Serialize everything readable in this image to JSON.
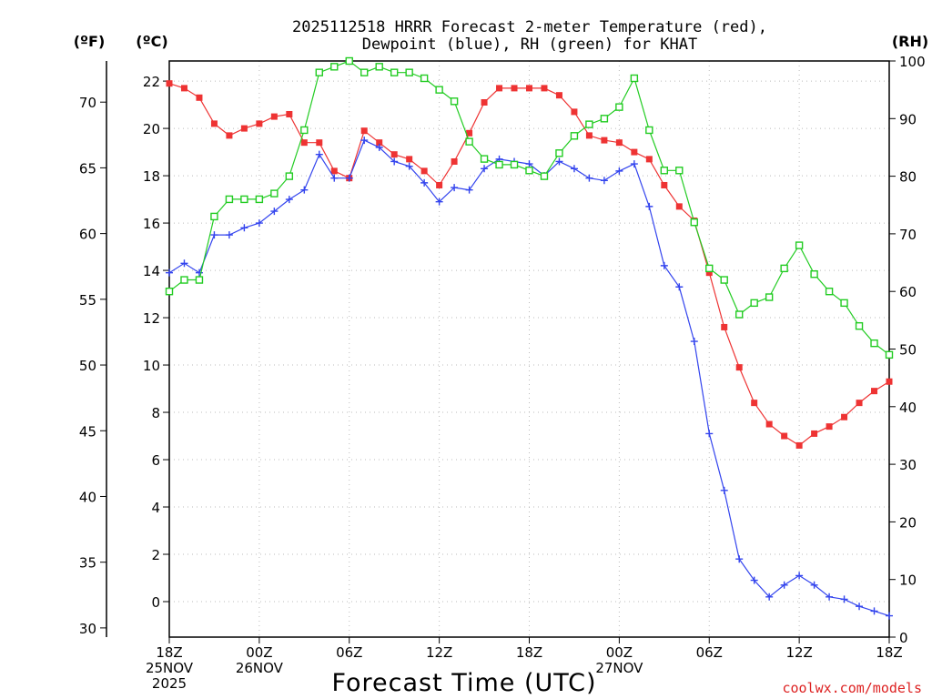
{
  "chart_data": {
    "type": "line",
    "title_line1": "2025112518 HRRR Forecast 2-meter Temperature (red),",
    "title_line2": "Dewpoint (blue), RH (green) for KHAT",
    "unit_f": "(ºF)",
    "unit_c": "(ºC)",
    "unit_rh": "(RH)",
    "xlabel": "Forecast Time (UTC)",
    "credit": "coolwx.com/models",
    "colors": {
      "temperature": "#ee3333",
      "dewpoint": "#3344ee",
      "rh": "#22cc22",
      "grid": "#bbbbbb"
    },
    "x_range_hours": [
      0,
      48
    ],
    "x_ticks": [
      {
        "hour": 0,
        "lines": [
          "18Z",
          "25NOV",
          "2025"
        ]
      },
      {
        "hour": 6,
        "lines": [
          "00Z",
          "26NOV"
        ]
      },
      {
        "hour": 12,
        "lines": [
          "06Z"
        ]
      },
      {
        "hour": 18,
        "lines": [
          "12Z"
        ]
      },
      {
        "hour": 24,
        "lines": [
          "18Z"
        ]
      },
      {
        "hour": 30,
        "lines": [
          "00Z",
          "27NOV"
        ]
      },
      {
        "hour": 36,
        "lines": [
          "06Z"
        ]
      },
      {
        "hour": 42,
        "lines": [
          "12Z"
        ]
      },
      {
        "hour": 48,
        "lines": [
          "18Z"
        ]
      }
    ],
    "celsius_axis": {
      "range": [
        -1.5,
        22.85
      ],
      "ticks": [
        0,
        2,
        4,
        6,
        8,
        10,
        12,
        14,
        16,
        18,
        20,
        22
      ]
    },
    "fahrenheit_ticks": [
      30,
      35,
      40,
      45,
      50,
      55,
      60,
      65,
      70
    ],
    "rh_axis": {
      "range": [
        0,
        100
      ],
      "ticks": [
        0,
        10,
        20,
        30,
        40,
        50,
        60,
        70,
        80,
        90,
        100
      ]
    },
    "series": [
      {
        "name": "Temperature (°C)",
        "key": "temperature",
        "marker": "filled-square",
        "values": [
          21.9,
          21.7,
          21.3,
          20.2,
          19.7,
          20.0,
          20.2,
          20.5,
          20.6,
          19.4,
          19.4,
          18.2,
          17.9,
          19.9,
          19.4,
          18.9,
          18.7,
          18.2,
          17.6,
          18.6,
          19.8,
          21.1,
          21.7,
          21.7,
          21.7,
          21.7,
          21.4,
          20.7,
          19.7,
          19.5,
          19.4,
          19.0,
          18.7,
          17.6,
          16.7,
          16.1,
          13.9,
          11.6,
          9.9,
          8.4,
          7.5,
          7.0,
          6.6,
          7.1,
          7.4,
          7.8,
          8.4,
          8.9,
          9.3
        ]
      },
      {
        "name": "Dewpoint (°C)",
        "key": "dewpoint",
        "marker": "plus",
        "values": [
          13.9,
          14.3,
          13.9,
          15.5,
          15.5,
          15.8,
          16.0,
          16.5,
          17.0,
          17.4,
          18.9,
          17.9,
          17.9,
          19.5,
          19.2,
          18.6,
          18.4,
          17.7,
          16.9,
          17.5,
          17.4,
          18.3,
          18.7,
          18.6,
          18.5,
          18.0,
          18.6,
          18.3,
          17.9,
          17.8,
          18.2,
          18.5,
          16.7,
          14.2,
          13.3,
          11.0,
          7.1,
          4.7,
          1.8,
          0.9,
          0.2,
          0.7,
          1.1,
          0.7,
          0.2,
          0.1,
          -0.2,
          -0.4,
          -0.6
        ]
      },
      {
        "name": "RH (%)",
        "key": "rh",
        "marker": "open-square",
        "values": [
          60,
          62,
          62,
          73,
          76,
          76,
          76,
          77,
          80,
          88,
          98,
          99,
          100,
          98,
          99,
          98,
          98,
          97,
          95,
          93,
          86,
          83,
          82,
          82,
          81,
          80,
          84,
          87,
          89,
          90,
          92,
          97,
          88,
          81,
          81,
          72,
          64,
          62,
          56,
          58,
          59,
          64,
          68,
          63,
          60,
          58,
          54,
          51,
          49
        ]
      }
    ]
  }
}
